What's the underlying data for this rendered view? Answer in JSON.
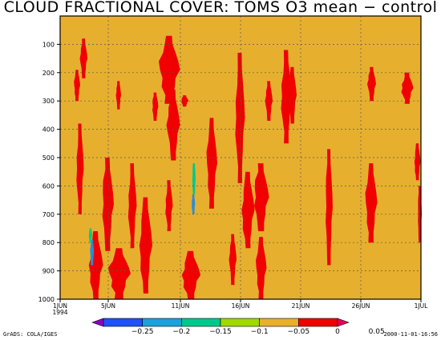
{
  "title": "CLOUD FRACTIONAL COVER: TOMS O3 mean − control",
  "footer": {
    "left": "GrADS: COLA/IGES",
    "right": "2000-11-01-16:56"
  },
  "colors": {
    "field": "#e6b02e",
    "positive": "#f00000",
    "blue": "#2b8cd8",
    "teal": "#00c88c",
    "grid": "#555555"
  },
  "chart_data": {
    "type": "heatmap",
    "title": "CLOUD FRACTIONAL COVER: TOMS O3 mean − control",
    "xlabel": "",
    "ylabel": "",
    "y_axis_inverted": true,
    "ylim": [
      1000,
      0
    ],
    "ytick_values": [
      100,
      200,
      300,
      400,
      500,
      600,
      700,
      800,
      900,
      1000
    ],
    "ytick_labels": [
      "100",
      "200",
      "300",
      "400",
      "500",
      "600",
      "700",
      "800",
      "900",
      "1000"
    ],
    "xlim_days": [
      1,
      31
    ],
    "xtick_positions": [
      1,
      5,
      11,
      16,
      21,
      26,
      31
    ],
    "xtick_labels": [
      "1JUN\n1994",
      "5JUN",
      "11JUN",
      "16JUN",
      "21JUN",
      "26JUN",
      "1JUL"
    ],
    "grid": true,
    "background_value_range": [
      0,
      0.05
    ],
    "colorbar": {
      "levels": [
        "-0.25",
        "-0.2",
        "-0.15",
        "-0.1",
        "-0.05",
        "0",
        "0.05"
      ],
      "colors": [
        "#8b00c8",
        "#2050ff",
        "#1ea0d8",
        "#00c88c",
        "#a0d800",
        "#e6b02e",
        "#f00000",
        "#e6005a"
      ]
    },
    "regions": [
      {
        "value": "> 0.05",
        "color": "#f00000",
        "days": [
          2.2,
          2.6
        ],
        "levels": [
          190,
          300
        ]
      },
      {
        "value": "> 0.05",
        "color": "#f00000",
        "days": [
          2.7,
          3.2
        ],
        "levels": [
          80,
          220
        ]
      },
      {
        "value": "> 0.05",
        "color": "#f00000",
        "days": [
          2.4,
          2.9
        ],
        "levels": [
          380,
          700
        ]
      },
      {
        "value": "> 0.05",
        "color": "#f00000",
        "days": [
          3.4,
          4.5
        ],
        "levels": [
          760,
          1000
        ]
      },
      {
        "value": "> 0.05",
        "color": "#f00000",
        "days": [
          4.5,
          5.4
        ],
        "levels": [
          500,
          830
        ]
      },
      {
        "value": "> 0.05",
        "color": "#f00000",
        "days": [
          5.0,
          6.8
        ],
        "levels": [
          820,
          1000
        ]
      },
      {
        "value": "> 0.05",
        "color": "#f00000",
        "days": [
          5.7,
          6.0
        ],
        "levels": [
          230,
          330
        ]
      },
      {
        "value": "> 0.05",
        "color": "#f00000",
        "days": [
          6.7,
          7.3
        ],
        "levels": [
          520,
          820
        ]
      },
      {
        "value": "> 0.05",
        "color": "#f00000",
        "days": [
          7.6,
          8.6
        ],
        "levels": [
          640,
          980
        ]
      },
      {
        "value": "> 0.05",
        "color": "#f00000",
        "days": [
          8.7,
          9.1
        ],
        "levels": [
          270,
          370
        ]
      },
      {
        "value": "> 0.05",
        "color": "#f00000",
        "days": [
          9.2,
          10.9
        ],
        "levels": [
          70,
          310
        ]
      },
      {
        "value": "> 0.05",
        "color": "#f00000",
        "days": [
          9.9,
          10.9
        ],
        "levels": [
          260,
          510
        ]
      },
      {
        "value": "> 0.05",
        "color": "#f00000",
        "days": [
          9.8,
          10.3
        ],
        "levels": [
          580,
          760
        ]
      },
      {
        "value": "> 0.05",
        "color": "#f00000",
        "days": [
          11.1,
          12.6
        ],
        "levels": [
          830,
          1000
        ]
      },
      {
        "value": "> 0.05",
        "color": "#f00000",
        "days": [
          11.1,
          11.6
        ],
        "levels": [
          280,
          320
        ]
      },
      {
        "value": "> 0.05",
        "color": "#f00000",
        "days": [
          13.2,
          14.0
        ],
        "levels": [
          360,
          680
        ]
      },
      {
        "value": "> 0.05",
        "color": "#f00000",
        "days": [
          15.1,
          15.6
        ],
        "levels": [
          770,
          950
        ]
      },
      {
        "value": "> 0.05",
        "color": "#f00000",
        "days": [
          15.6,
          16.3
        ],
        "levels": [
          130,
          590
        ]
      },
      {
        "value": "> 0.05",
        "color": "#f00000",
        "days": [
          16.1,
          17.1
        ],
        "levels": [
          550,
          820
        ]
      },
      {
        "value": "> 0.05",
        "color": "#f00000",
        "days": [
          17.1,
          18.3
        ],
        "levels": [
          520,
          760
        ]
      },
      {
        "value": "> 0.05",
        "color": "#f00000",
        "days": [
          17.3,
          18.1
        ],
        "levels": [
          780,
          1000
        ]
      },
      {
        "value": "> 0.05",
        "color": "#f00000",
        "days": [
          18.1,
          18.6
        ],
        "levels": [
          230,
          370
        ]
      },
      {
        "value": "> 0.05",
        "color": "#f00000",
        "days": [
          19.4,
          20.2
        ],
        "levels": [
          120,
          450
        ]
      },
      {
        "value": "> 0.05",
        "color": "#f00000",
        "days": [
          20.0,
          20.6
        ],
        "levels": [
          180,
          380
        ]
      },
      {
        "value": "> 0.05",
        "color": "#f00000",
        "days": [
          23.1,
          23.6
        ],
        "levels": [
          470,
          880
        ]
      },
      {
        "value": "> 0.05",
        "color": "#f00000",
        "days": [
          26.4,
          27.3
        ],
        "levels": [
          520,
          800
        ]
      },
      {
        "value": "> 0.05",
        "color": "#f00000",
        "days": [
          26.6,
          27.2
        ],
        "levels": [
          180,
          300
        ]
      },
      {
        "value": "> 0.05",
        "color": "#f00000",
        "days": [
          29.4,
          30.3
        ],
        "levels": [
          200,
          310
        ]
      },
      {
        "value": "> 0.05",
        "color": "#f00000",
        "days": [
          30.5,
          30.9
        ],
        "levels": [
          450,
          580
        ]
      },
      {
        "value": "> 0.05",
        "color": "#f00000",
        "days": [
          30.8,
          31.0
        ],
        "levels": [
          600,
          800
        ]
      },
      {
        "value": "< -0.05",
        "color": "#2b8cd8",
        "days": [
          3.55,
          3.75
        ],
        "levels": [
          790,
          880
        ]
      },
      {
        "value": "< -0.05",
        "color": "#00c88c",
        "days": [
          3.45,
          3.6
        ],
        "levels": [
          750,
          800
        ]
      },
      {
        "value": "< -0.05",
        "color": "#2b8cd8",
        "days": [
          12.0,
          12.15
        ],
        "levels": [
          630,
          700
        ]
      },
      {
        "value": "< -0.05",
        "color": "#00c88c",
        "days": [
          12.05,
          12.2
        ],
        "levels": [
          520,
          630
        ]
      }
    ]
  }
}
